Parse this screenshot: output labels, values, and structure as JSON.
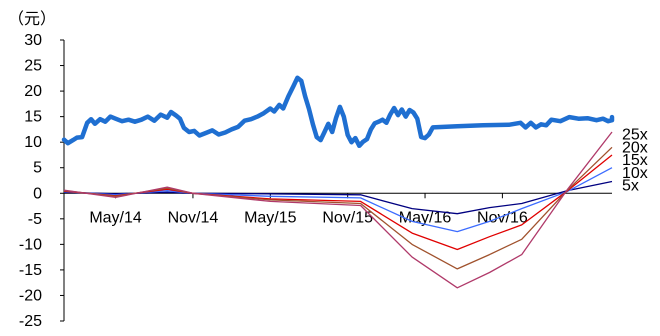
{
  "chart_data": {
    "type": "line",
    "unit_label": "（元）",
    "ylim": [
      -25,
      30
    ],
    "y_ticks": [
      -25,
      -20,
      -15,
      -10,
      -5,
      0,
      5,
      10,
      15,
      20,
      25,
      30
    ],
    "y_tick_labels": [
      "-25",
      "-20",
      "-15",
      "-10",
      "-5",
      "0",
      "5",
      "10",
      "15",
      "20",
      "25",
      "30"
    ],
    "x_tick_labels": [
      "May/14",
      "Nov/14",
      "May/15",
      "Nov/15",
      "May/16",
      "Nov/16"
    ],
    "x_tick_months": [
      4,
      10,
      16,
      22,
      28,
      34
    ],
    "x_range_months": [
      0,
      42.5
    ],
    "grid": false,
    "price": {
      "color": "#1f6fd1",
      "points": [
        [
          0,
          10.5
        ],
        [
          0.3,
          9.8
        ],
        [
          0.7,
          10.4
        ],
        [
          1.0,
          10.9
        ],
        [
          1.4,
          11.0
        ],
        [
          1.8,
          13.8
        ],
        [
          2.1,
          14.5
        ],
        [
          2.4,
          13.6
        ],
        [
          2.8,
          14.5
        ],
        [
          3.2,
          14.0
        ],
        [
          3.6,
          15.0
        ],
        [
          4.0,
          14.6
        ],
        [
          4.5,
          14.1
        ],
        [
          5.0,
          14.4
        ],
        [
          5.5,
          14.0
        ],
        [
          6.0,
          14.4
        ],
        [
          6.5,
          15.0
        ],
        [
          7.0,
          14.2
        ],
        [
          7.5,
          15.4
        ],
        [
          8.0,
          14.8
        ],
        [
          8.3,
          15.9
        ],
        [
          8.7,
          15.2
        ],
        [
          9.0,
          14.6
        ],
        [
          9.3,
          12.8
        ],
        [
          9.7,
          12.0
        ],
        [
          10.1,
          12.2
        ],
        [
          10.5,
          11.3
        ],
        [
          11.0,
          11.8
        ],
        [
          11.5,
          12.3
        ],
        [
          12.0,
          11.5
        ],
        [
          12.5,
          11.9
        ],
        [
          13.0,
          12.5
        ],
        [
          13.5,
          13.0
        ],
        [
          14.0,
          14.2
        ],
        [
          14.5,
          14.5
        ],
        [
          15.0,
          15.0
        ],
        [
          15.5,
          15.7
        ],
        [
          16.0,
          16.6
        ],
        [
          16.3,
          16.0
        ],
        [
          16.7,
          17.3
        ],
        [
          17.0,
          16.6
        ],
        [
          17.4,
          19.0
        ],
        [
          17.8,
          21.0
        ],
        [
          18.1,
          22.6
        ],
        [
          18.4,
          22.0
        ],
        [
          18.7,
          19.0
        ],
        [
          19.0,
          16.5
        ],
        [
          19.3,
          13.5
        ],
        [
          19.6,
          11.0
        ],
        [
          19.9,
          10.4
        ],
        [
          20.2,
          12.0
        ],
        [
          20.5,
          13.6
        ],
        [
          20.8,
          12.0
        ],
        [
          21.1,
          14.8
        ],
        [
          21.4,
          16.9
        ],
        [
          21.7,
          15.0
        ],
        [
          22.0,
          11.4
        ],
        [
          22.3,
          10.0
        ],
        [
          22.6,
          10.8
        ],
        [
          22.9,
          9.3
        ],
        [
          23.2,
          10.1
        ],
        [
          23.5,
          10.6
        ],
        [
          23.8,
          12.5
        ],
        [
          24.1,
          13.7
        ],
        [
          24.4,
          14.0
        ],
        [
          24.7,
          14.4
        ],
        [
          25.0,
          13.8
        ],
        [
          25.3,
          15.4
        ],
        [
          25.6,
          16.7
        ],
        [
          25.9,
          15.3
        ],
        [
          26.2,
          16.4
        ],
        [
          26.5,
          15.0
        ],
        [
          26.8,
          16.3
        ],
        [
          27.1,
          15.8
        ],
        [
          27.4,
          14.6
        ],
        [
          27.7,
          11.0
        ],
        [
          28.0,
          10.8
        ],
        [
          28.3,
          11.5
        ],
        [
          28.6,
          12.9
        ],
        [
          30.5,
          13.1
        ],
        [
          32.5,
          13.3
        ],
        [
          34.5,
          13.4
        ],
        [
          35.4,
          13.8
        ],
        [
          35.8,
          12.9
        ],
        [
          36.2,
          13.8
        ],
        [
          36.6,
          12.9
        ],
        [
          37.0,
          13.5
        ],
        [
          37.4,
          13.3
        ],
        [
          37.8,
          14.4
        ],
        [
          38.5,
          14.1
        ],
        [
          39.2,
          14.9
        ],
        [
          39.9,
          14.6
        ],
        [
          40.6,
          14.7
        ],
        [
          41.3,
          14.3
        ],
        [
          41.8,
          14.6
        ],
        [
          42.2,
          14.1
        ],
        [
          42.5,
          14.3
        ],
        [
          42.5,
          14.9
        ]
      ]
    },
    "series": [
      {
        "name": "5x",
        "color": "#000080",
        "points": [
          [
            0,
            0.2
          ],
          [
            4,
            -0.1
          ],
          [
            8,
            0.2
          ],
          [
            10,
            0
          ],
          [
            16,
            -0.1
          ],
          [
            23,
            -0.3
          ],
          [
            27,
            -3.0
          ],
          [
            30.5,
            -4.0
          ],
          [
            33,
            -2.8
          ],
          [
            35.5,
            -2.0
          ],
          [
            39,
            0.5
          ],
          [
            42.5,
            2.3
          ]
        ]
      },
      {
        "name": "10x",
        "color": "#3c6cff",
        "points": [
          [
            0,
            0.3
          ],
          [
            4,
            -0.3
          ],
          [
            8,
            0.5
          ],
          [
            10,
            0
          ],
          [
            16,
            -0.6
          ],
          [
            23,
            -0.9
          ],
          [
            27,
            -5.5
          ],
          [
            30.5,
            -7.5
          ],
          [
            33,
            -5.5
          ],
          [
            35.5,
            -3.0
          ],
          [
            39,
            0.3
          ],
          [
            42.5,
            5.0
          ]
        ]
      },
      {
        "name": "15x",
        "color": "#e00000",
        "points": [
          [
            0,
            0.4
          ],
          [
            4,
            -0.5
          ],
          [
            8,
            0.8
          ],
          [
            10,
            0
          ],
          [
            16,
            -1.1
          ],
          [
            23,
            -1.6
          ],
          [
            27,
            -7.8
          ],
          [
            30.5,
            -11.0
          ],
          [
            33,
            -8.5
          ],
          [
            35.5,
            -6.2
          ],
          [
            39,
            0.4
          ],
          [
            42.5,
            7.5
          ]
        ]
      },
      {
        "name": "20x",
        "color": "#a0522d",
        "points": [
          [
            0,
            0.5
          ],
          [
            4,
            -0.6
          ],
          [
            8,
            1.0
          ],
          [
            10,
            0
          ],
          [
            16,
            -1.3
          ],
          [
            23,
            -2.0
          ],
          [
            27,
            -10.0
          ],
          [
            30.5,
            -14.8
          ],
          [
            33,
            -12.0
          ],
          [
            35.5,
            -9.0
          ],
          [
            39,
            0.5
          ],
          [
            42.5,
            9.0
          ]
        ]
      },
      {
        "name": "25x",
        "color": "#b03a6a",
        "points": [
          [
            0,
            0.6
          ],
          [
            4,
            -0.8
          ],
          [
            8,
            1.2
          ],
          [
            10,
            0
          ],
          [
            16,
            -1.6
          ],
          [
            23,
            -2.4
          ],
          [
            27,
            -12.5
          ],
          [
            30.5,
            -18.5
          ],
          [
            33,
            -15.5
          ],
          [
            35.5,
            -12.0
          ],
          [
            39,
            0.6
          ],
          [
            42.5,
            12.0
          ]
        ]
      }
    ],
    "series_label_y": [
      1.5,
      4.0,
      6.5,
      9.0,
      11.5
    ]
  }
}
